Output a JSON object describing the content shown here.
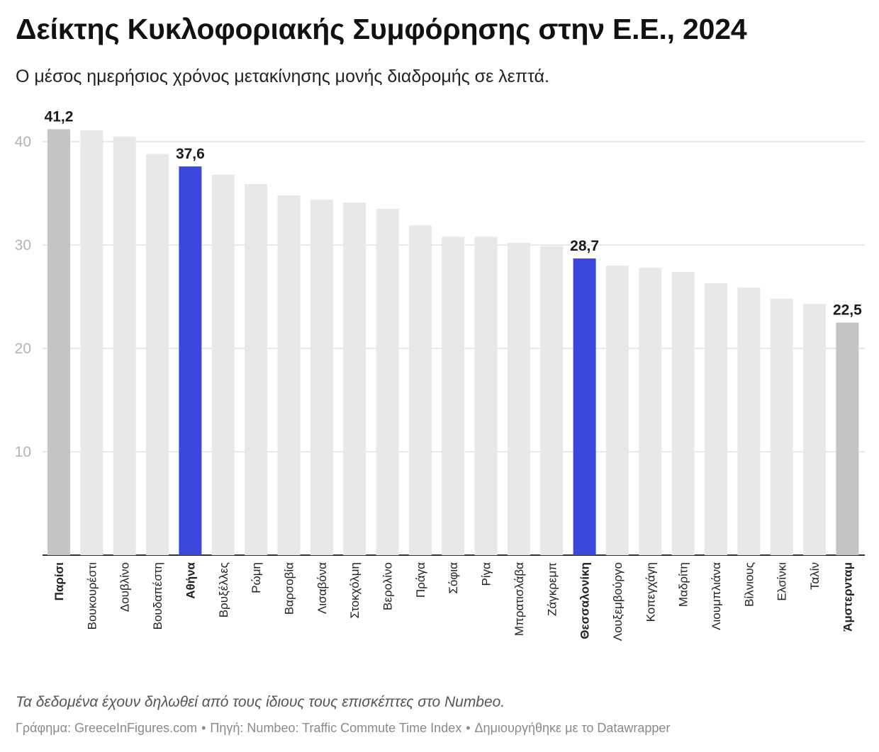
{
  "title": "Δείκτης Κυκλοφοριακής Συμφόρησης στην Ε.Ε., 2024",
  "subtitle": "Ο μέσος ημερήσιος χρόνος μετακίνησης μονής διαδρομής σε λεπτά.",
  "note": "Τα δεδομένα έχουν δηλωθεί από τους ίδιους τους επισκέπτες στο Numbeo.",
  "footer": {
    "chart_by": "Γράφημα: GreeceInFigures.com",
    "source": "Πηγή: Numbeo: Traffic Commute Time Index",
    "created_with": "Δημιουργήθηκε με το Datawrapper",
    "separator": "•"
  },
  "colors": {
    "default_bar": "#e8e8e8",
    "endpoint_bar": "#c4c4c4",
    "highlight_bar": "#3b48de",
    "gridline": "#e2e2e2",
    "axis": "#333333",
    "tick_label": "#b3b3b3"
  },
  "chart_data": {
    "type": "bar",
    "title": "Δείκτης Κυκλοφοριακής Συμφόρησης στην Ε.Ε., 2024",
    "xlabel": "",
    "ylabel": "",
    "ylim": [
      0,
      42
    ],
    "yticks": [
      10,
      20,
      30,
      40
    ],
    "grid": true,
    "categories": [
      "Παρίσι",
      "Βουκουρέστι",
      "Δουβλίνο",
      "Βουδαπέστη",
      "Αθήνα",
      "Βρυξέλλες",
      "Ρώμη",
      "Βαρσοβία",
      "Λισαβόνα",
      "Στοκχόλμη",
      "Βερολίνο",
      "Πράγα",
      "Σόφια",
      "Ρίγα",
      "Μπρατισλάβα",
      "Ζάγκρεμπ",
      "Θεσσαλονίκη",
      "Λουξεμβούργο",
      "Κοπεγχάγη",
      "Μαδρίτη",
      "Λιουμπλιάνα",
      "Βίλνιους",
      "Ελσίνκι",
      "Ταλίν",
      "Άμστερνταμ"
    ],
    "values": [
      41.2,
      41.1,
      40.5,
      38.8,
      37.6,
      36.8,
      35.9,
      34.8,
      34.4,
      34.1,
      33.5,
      31.9,
      30.8,
      30.8,
      30.2,
      29.9,
      28.7,
      28.0,
      27.8,
      27.4,
      26.3,
      25.9,
      24.8,
      24.3,
      22.5
    ],
    "highlighted": [
      "Αθήνα",
      "Θεσσαλονίκη"
    ],
    "endpoints": [
      "Παρίσι",
      "Άμστερνταμ"
    ],
    "labels": [
      {
        "category": "Παρίσι",
        "text": "41,2"
      },
      {
        "category": "Αθήνα",
        "text": "37,6"
      },
      {
        "category": "Θεσσαλονίκη",
        "text": "28,7"
      },
      {
        "category": "Άμστερνταμ",
        "text": "22,5"
      }
    ]
  }
}
